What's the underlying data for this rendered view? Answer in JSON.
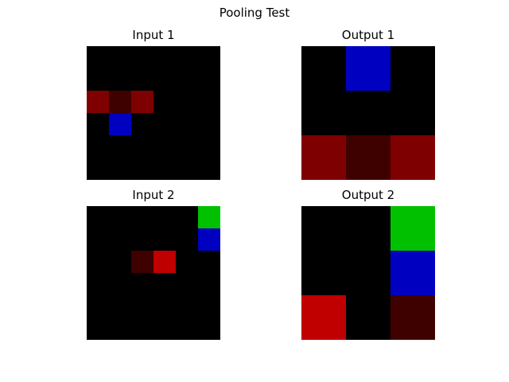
{
  "figure": {
    "title": "Pooling Test"
  },
  "chart_data": [
    {
      "type": "heatmap",
      "title": "Input 1",
      "grid_size": 6,
      "default_color": "#000000",
      "cells": [
        {
          "row": 2,
          "col": 0,
          "color": "#7f0000"
        },
        {
          "row": 2,
          "col": 1,
          "color": "#3f0000"
        },
        {
          "row": 2,
          "col": 2,
          "color": "#7f0000"
        },
        {
          "row": 3,
          "col": 1,
          "color": "#0000c0"
        }
      ]
    },
    {
      "type": "heatmap",
      "title": "Output 1",
      "grid_size": 3,
      "default_color": "#000000",
      "cells": [
        {
          "row": 0,
          "col": 1,
          "color": "#0000c0"
        },
        {
          "row": 2,
          "col": 0,
          "color": "#7f0000"
        },
        {
          "row": 2,
          "col": 1,
          "color": "#3f0000"
        },
        {
          "row": 2,
          "col": 2,
          "color": "#7f0000"
        }
      ]
    },
    {
      "type": "heatmap",
      "title": "Input 2",
      "grid_size": 6,
      "default_color": "#000000",
      "cells": [
        {
          "row": 0,
          "col": 5,
          "color": "#00c000"
        },
        {
          "row": 1,
          "col": 5,
          "color": "#0000c0"
        },
        {
          "row": 2,
          "col": 2,
          "color": "#3f0000"
        },
        {
          "row": 2,
          "col": 3,
          "color": "#c00000"
        }
      ]
    },
    {
      "type": "heatmap",
      "title": "Output 2",
      "grid_size": 3,
      "default_color": "#000000",
      "cells": [
        {
          "row": 0,
          "col": 2,
          "color": "#00c000"
        },
        {
          "row": 1,
          "col": 2,
          "color": "#0000c0"
        },
        {
          "row": 2,
          "col": 0,
          "color": "#c00000"
        },
        {
          "row": 2,
          "col": 2,
          "color": "#3f0000"
        }
      ]
    }
  ]
}
